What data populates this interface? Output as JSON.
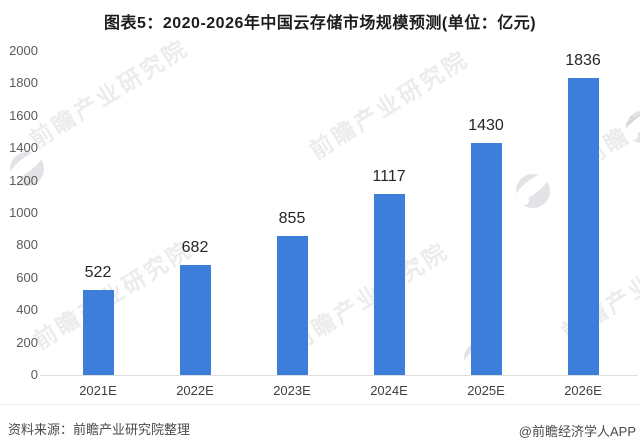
{
  "title": "图表5：2020-2026年中国云存储市场规模预测(单位：亿元)",
  "chart_data": {
    "type": "bar",
    "title": "图表5：2020-2026年中国云存储市场规模预测(单位：亿元)",
    "unit": "亿元",
    "categories": [
      "2021E",
      "2022E",
      "2023E",
      "2024E",
      "2025E",
      "2026E"
    ],
    "values": [
      522,
      682,
      855,
      1117,
      1430,
      1836
    ],
    "yticks": [
      2000,
      1800,
      1600,
      1400,
      1200,
      1000,
      800,
      600,
      400,
      200,
      0
    ],
    "ylim": [
      0,
      2000
    ],
    "grid": false,
    "legend": "none",
    "bar_color": "#3c7ed9",
    "value_labels": true
  },
  "watermark": {
    "text": "前瞻产业研究院",
    "logo": "qianzhan-circle-logo"
  },
  "footer": {
    "source": "资料来源：前瞻产业研究院整理",
    "credit": "@前瞻经济学人APP"
  }
}
